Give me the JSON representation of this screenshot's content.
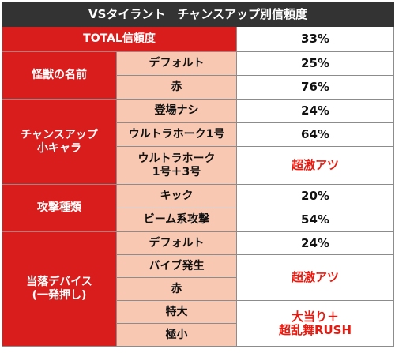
{
  "title": "VSタイラント　チャンスアップ別信頼度",
  "total": {
    "label": "TOTAL信頼度",
    "value": "33%"
  },
  "groups": [
    {
      "label": "怪獣の名前",
      "rows": [
        {
          "label": "デフォルト",
          "value": "25%"
        },
        {
          "label": "赤",
          "value": "76%"
        }
      ]
    },
    {
      "label": "チャンスアップ\n小キャラ",
      "rows": [
        {
          "label": "登場ナシ",
          "value": "24%"
        },
        {
          "label": "ウルトラホーク1号",
          "value": "64%"
        },
        {
          "label": "ウルトラホーク\n1号＋3号",
          "value": "超激アツ"
        }
      ]
    },
    {
      "label": "攻撃種類",
      "rows": [
        {
          "label": "キック",
          "value": "20%"
        },
        {
          "label": "ビーム系攻撃",
          "value": "54%"
        }
      ]
    },
    {
      "label": "当落デバイス\n(一発押し)",
      "rows": [
        {
          "label": "デフォルト",
          "value": "24%"
        },
        {
          "label": "バイブ発生"
        },
        {
          "label": "赤"
        },
        {
          "label": "特大"
        },
        {
          "label": "極小"
        }
      ],
      "merged_values": [
        {
          "text": "超激アツ"
        },
        {
          "text": "大当り＋\n超乱舞RUSH"
        }
      ]
    }
  ],
  "colors": {
    "header_bg": "#333333",
    "category_bg": "#d91d1d",
    "subcategory_bg": "#f9c8b2",
    "hot_text": "#e8190e"
  }
}
